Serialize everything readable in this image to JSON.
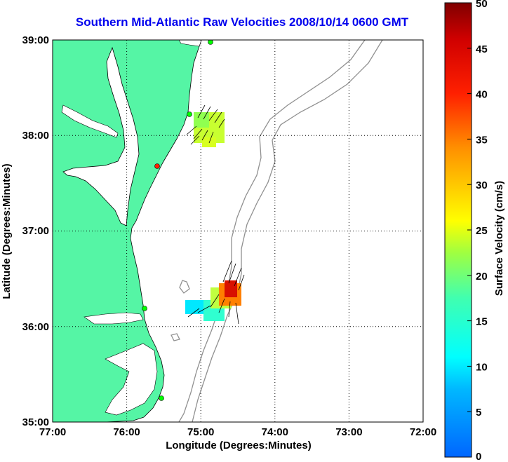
{
  "title": "Southern Mid-Atlantic Raw Velocities 2008/10/14 0600 GMT",
  "map": {
    "x_axis_label": "Longitude (Degrees:Minutes)",
    "y_axis_label": "Latitude (Degrees:Minutes)",
    "x_ticks": [
      "77:00",
      "76:00",
      "75:00",
      "74:00",
      "73:00",
      "72:00"
    ],
    "y_ticks": [
      "39:00",
      "38:00",
      "37:00",
      "36:00",
      "35:00"
    ],
    "lon_range": [
      -77,
      -72
    ],
    "lat_range": [
      35,
      39
    ],
    "land_color": "#55f5a5",
    "contour_color": "#909090"
  },
  "colorbar": {
    "label": "Surface Velocity (cm/s)",
    "ticks": [
      "0",
      "5",
      "10",
      "15",
      "20",
      "25",
      "30",
      "35",
      "40",
      "45",
      "50"
    ],
    "range": [
      0,
      50
    ]
  }
}
